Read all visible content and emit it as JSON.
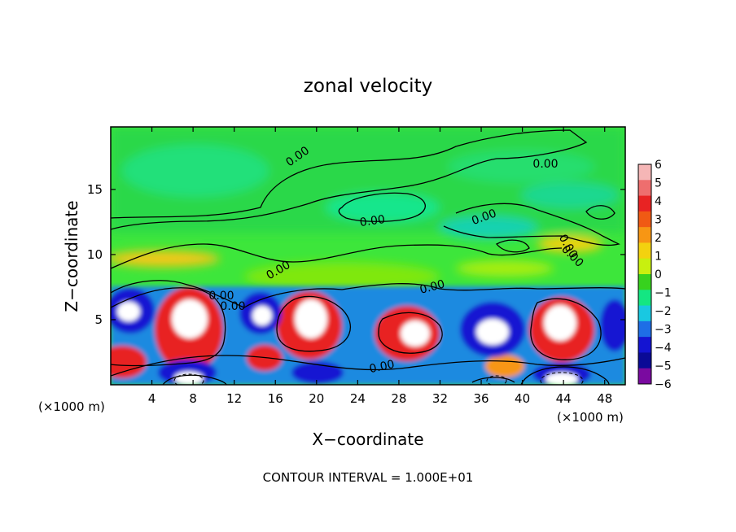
{
  "chart_data": {
    "type": "heatmap",
    "title": "zonal velocity",
    "xlabel": "X−coordinate",
    "ylabel": "Z−coordinate",
    "x_unit_left": "(×1000 m)",
    "x_unit_right": "(×1000 m)",
    "footer": "CONTOUR INTERVAL = 1.000E+01",
    "xlim": [
      0,
      50
    ],
    "ylim": [
      0,
      19.8
    ],
    "x_ticks": [
      "4",
      "8",
      "12",
      "16",
      "20",
      "24",
      "28",
      "32",
      "36",
      "40",
      "44",
      "48"
    ],
    "y_ticks": [
      "5",
      "10",
      "15"
    ],
    "colorbar": {
      "min": -6,
      "max": 6,
      "labels": [
        "6",
        "5",
        "4",
        "3",
        "2",
        "1",
        "0",
        "−1",
        "−2",
        "−3",
        "−4",
        "−5",
        "−6"
      ],
      "colors": [
        "#f5b6b6",
        "#ee6e6e",
        "#e82323",
        "#f05a14",
        "#f79614",
        "#f3d20f",
        "#c8f00f",
        "#37d21e",
        "#14e682",
        "#19c8e1",
        "#1e6ee6",
        "#1414d2",
        "#0a0a96",
        "#7a0aa0"
      ]
    },
    "contour_labels": [
      "0.00",
      "0.00",
      "0.00",
      "0.00",
      "0.00",
      "0.00",
      "0.00",
      "0.00",
      "0.00",
      "0.00",
      "0.00"
    ]
  }
}
